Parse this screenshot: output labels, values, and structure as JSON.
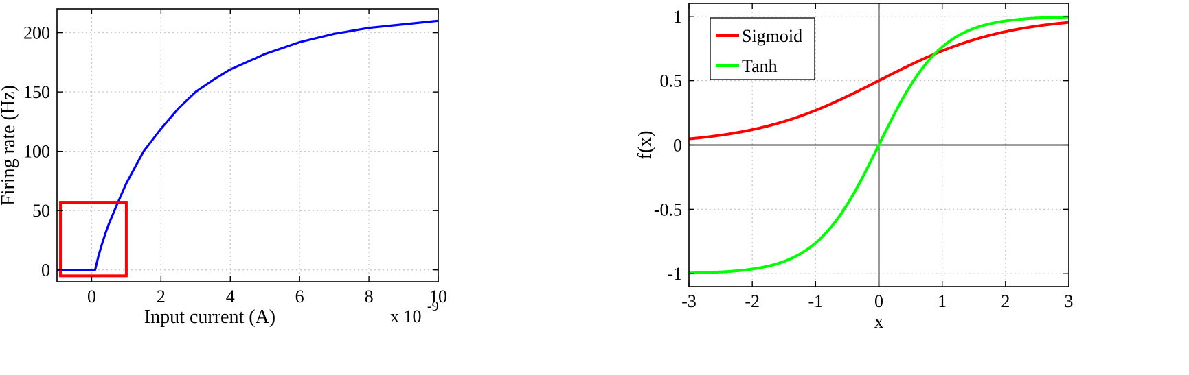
{
  "chart_data": [
    {
      "type": "line",
      "xlabel": "Input current (A)",
      "ylabel": "Firing rate (Hz)",
      "x_multiplier_label": "x 10",
      "x_multiplier_exponent": "-9",
      "xlim": [
        -1,
        10
      ],
      "ylim": [
        -10,
        220
      ],
      "xticks": [
        0,
        2,
        4,
        6,
        8,
        10
      ],
      "yticks": [
        0,
        50,
        100,
        150,
        200
      ],
      "grid": true,
      "series": [
        {
          "color": "#0000ff",
          "x": [
            -1,
            0.1,
            0.2,
            0.3,
            0.4,
            0.5,
            0.7,
            1,
            1.5,
            2,
            2.5,
            3,
            3.5,
            4,
            5,
            6,
            7,
            8,
            9,
            10
          ],
          "y": [
            0,
            0,
            12,
            22,
            31,
            39,
            53,
            73,
            100,
            119,
            136,
            150,
            160,
            169,
            182,
            192,
            199,
            204,
            207,
            210
          ]
        }
      ],
      "annotations": [
        {
          "type": "rectangle",
          "color": "#ff0000",
          "x_range": [
            -0.9,
            1.0
          ],
          "y_range": [
            -5,
            57
          ]
        }
      ]
    },
    {
      "type": "line",
      "xlabel": "x",
      "ylabel": "f(x)",
      "xlim": [
        -3,
        3
      ],
      "ylim": [
        -1.1,
        1.1
      ],
      "xticks": [
        -3,
        -2,
        -1,
        0,
        1,
        2,
        3
      ],
      "yticks": [
        -1,
        -0.5,
        0,
        0.5,
        1
      ],
      "grid": true,
      "legend": "top-left",
      "axes_lines": true,
      "series": [
        {
          "name": "Sigmoid",
          "color": "#ff0000",
          "function": "sigmoid"
        },
        {
          "name": "Tanh",
          "color": "#00ff00",
          "function": "tanh"
        }
      ]
    }
  ]
}
